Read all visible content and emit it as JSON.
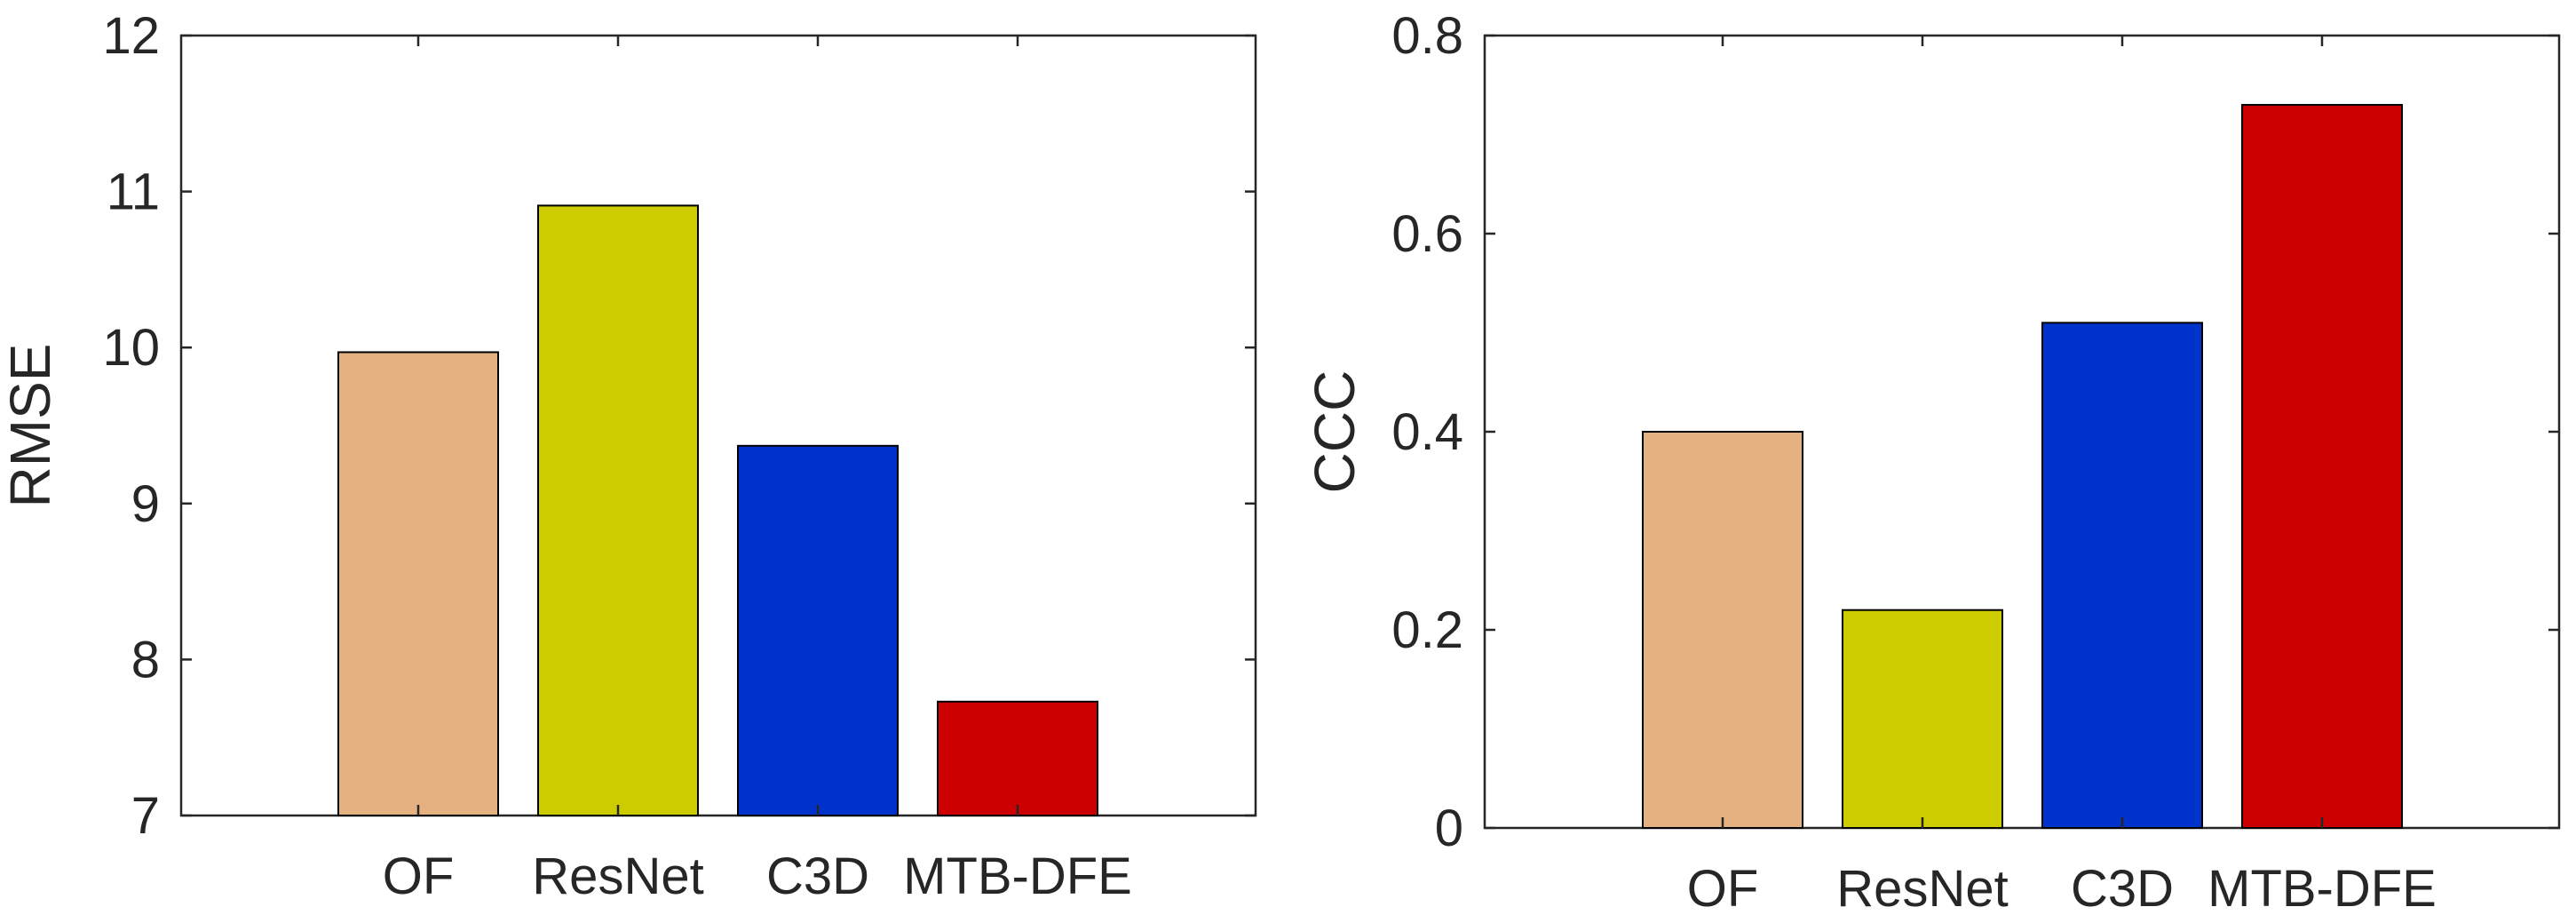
{
  "chart_data": [
    {
      "type": "bar",
      "categories": [
        "OF",
        "ResNet",
        "C3D",
        "MTB-DFE"
      ],
      "values": [
        9.97,
        10.91,
        9.37,
        7.73
      ],
      "colors": [
        "#E6B181",
        "#CCCC00",
        "#0033CC",
        "#CC0000"
      ],
      "xlabel": "",
      "ylabel": "RMSE",
      "ylim": [
        7,
        12
      ],
      "yticks": [
        "7",
        "8",
        "9",
        "10",
        "11",
        "12"
      ],
      "grid": false
    },
    {
      "type": "bar",
      "categories": [
        "OF",
        "ResNet",
        "C3D",
        "MTB-DFE"
      ],
      "values": [
        0.4,
        0.22,
        0.51,
        0.73
      ],
      "colors": [
        "#E6B181",
        "#CCCC00",
        "#0033CC",
        "#CC0000"
      ],
      "xlabel": "",
      "ylabel": "CCC",
      "ylim": [
        0,
        0.8
      ],
      "yticks": [
        "0",
        "0.2",
        "0.4",
        "0.6",
        "0.8"
      ],
      "grid": false
    }
  ]
}
